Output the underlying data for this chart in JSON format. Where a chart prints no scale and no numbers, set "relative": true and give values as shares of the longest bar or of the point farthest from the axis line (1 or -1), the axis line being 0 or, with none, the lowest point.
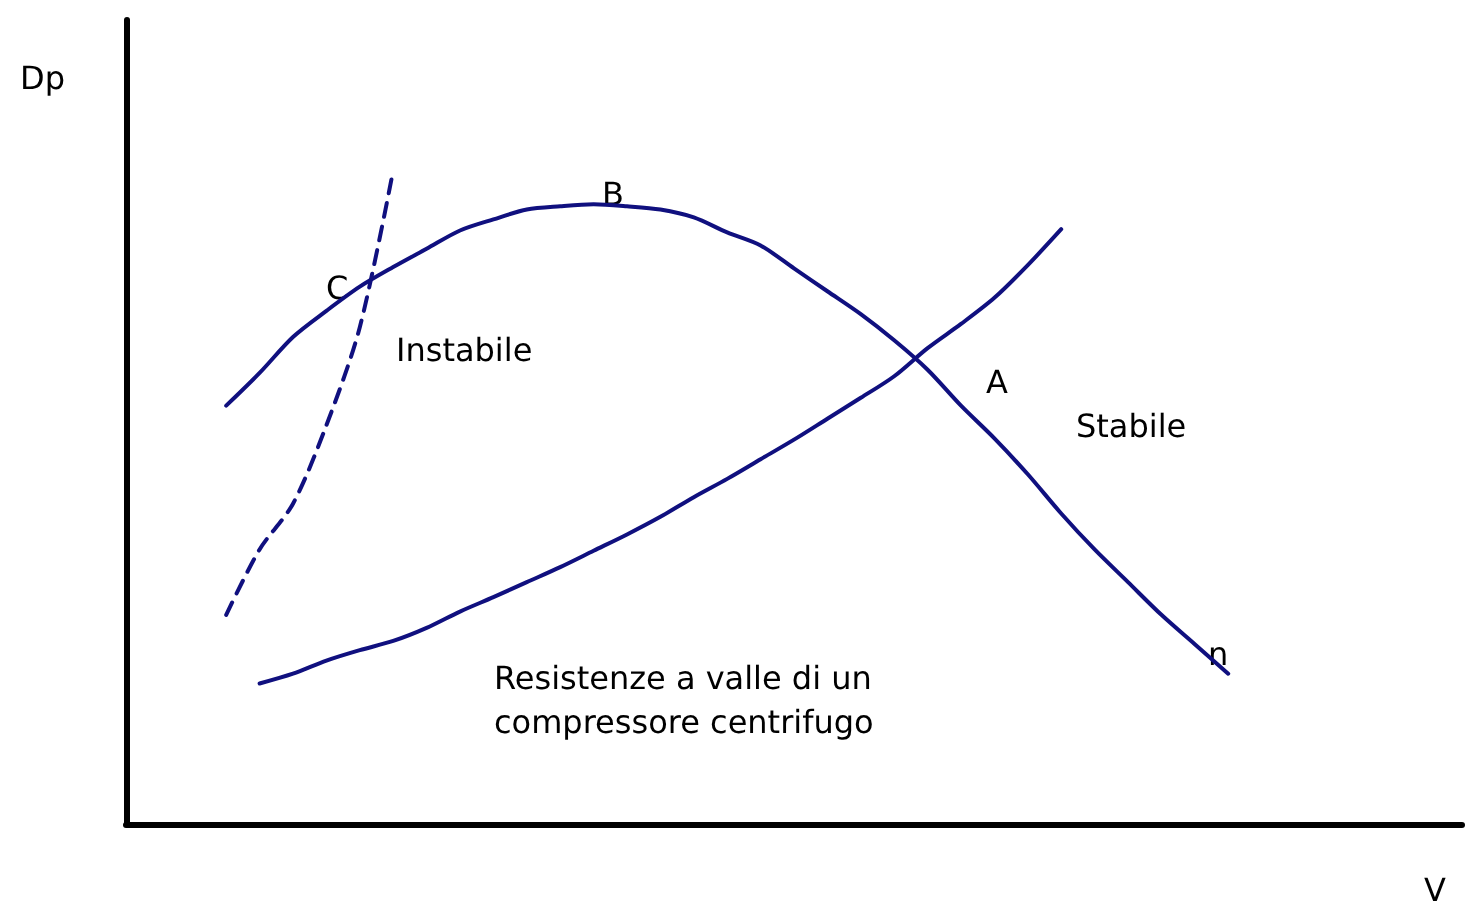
{
  "chart_data": {
    "type": "line",
    "relative": true,
    "xlabel": "V",
    "ylabel": "Dp",
    "marker": "none",
    "categories": [
      null,
      null,
      null,
      null,
      null,
      null,
      null,
      null,
      null,
      null,
      null,
      null,
      null,
      null,
      null,
      null,
      null,
      null,
      null,
      null,
      null,
      null,
      null,
      null,
      null,
      null,
      null,
      null,
      null,
      null,
      null,
      null,
      null,
      null,
      null,
      null,
      null,
      null,
      null,
      null,
      null
    ],
    "series": [
      {
        "color": "#10107f",
        "line_style": "solid",
        "values": [
          null,
          null,
          null,
          0.64,
          0.69,
          0.745,
          0.785,
          0.822,
          0.852,
          0.88,
          0.908,
          0.925,
          0.94,
          0.945,
          0.948,
          0.945,
          0.94,
          0.928,
          0.905,
          0.885,
          0.85,
          0.815,
          0.78,
          0.74,
          0.695,
          0.64,
          0.59,
          0.535,
          0.475,
          0.42,
          0.37,
          0.32,
          0.275,
          0.23,
          null,
          null,
          null,
          null,
          null,
          null,
          null
        ]
      },
      {
        "color": "#10107f",
        "line_style": "solid",
        "values": [
          null,
          null,
          null,
          null,
          0.215,
          0.23,
          0.25,
          0.266,
          0.28,
          0.3,
          0.325,
          0.347,
          0.37,
          0.393,
          0.418,
          0.443,
          0.47,
          0.5,
          0.528,
          0.558,
          0.588,
          0.62,
          0.652,
          0.685,
          0.728,
          0.765,
          0.805,
          0.855,
          0.91,
          null,
          null,
          null,
          null,
          null,
          null,
          null,
          null,
          null,
          null,
          null,
          null
        ]
      },
      {
        "color": "#10107f",
        "line_style": "dashed",
        "values": [
          null,
          null,
          null,
          0.32,
          0.42,
          0.49,
          0.61,
          0.76,
          1,
          null,
          null,
          null,
          null,
          null,
          null,
          null,
          null,
          null,
          null,
          null,
          null,
          null,
          null,
          null,
          null,
          null,
          null,
          null,
          null,
          null,
          null,
          null,
          null,
          null,
          null,
          null,
          null,
          null,
          null,
          null,
          null
        ]
      }
    ],
    "annotations": [
      "B",
      "C",
      "A",
      "n",
      "Instabile",
      "Stabile",
      "Resistenze a valle di un\ncompressore centrifugo"
    ]
  }
}
